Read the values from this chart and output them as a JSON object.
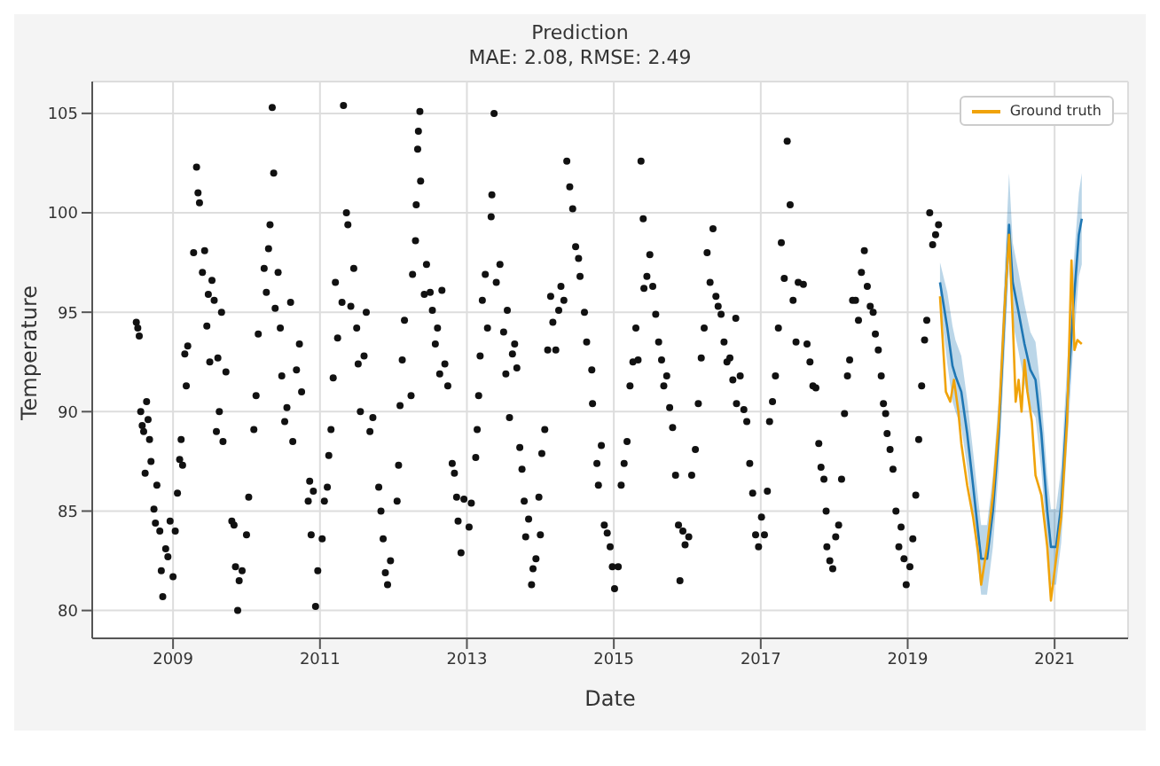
{
  "chart_data": {
    "type": "scatter",
    "title": "Prediction",
    "subtitle": "MAE: 2.08, RMSE: 2.49",
    "xlabel": "Date",
    "ylabel": "Temperature",
    "xlim": [
      2007.9,
      2022.0
    ],
    "xticks": [
      2009,
      2011,
      2013,
      2015,
      2017,
      2019,
      2021
    ],
    "ylim": [
      78.6,
      106.6
    ],
    "yticks": [
      80,
      85,
      90,
      95,
      100,
      105
    ],
    "grid": true,
    "legend": "top right",
    "series": [
      {
        "color": "#111111",
        "marker": "circle",
        "x": [
          2008.5,
          2008.52,
          2008.54,
          2008.56,
          2008.58,
          2008.6,
          2008.62,
          2008.64,
          2008.66,
          2008.68,
          2008.7,
          2008.74,
          2008.76,
          2008.78,
          2008.82,
          2008.84,
          2008.86,
          2008.9,
          2008.93,
          2008.96,
          2009.0,
          2009.03,
          2009.06,
          2009.09,
          2009.11,
          2009.13,
          2009.16,
          2009.18,
          2009.2,
          2009.28,
          2009.32,
          2009.34,
          2009.36,
          2009.4,
          2009.43,
          2009.46,
          2009.48,
          2009.5,
          2009.53,
          2009.56,
          2009.59,
          2009.61,
          2009.63,
          2009.66,
          2009.68,
          2009.72,
          2009.8,
          2009.83,
          2009.85,
          2009.88,
          2009.9,
          2009.94,
          2010.0,
          2010.03,
          2010.1,
          2010.13,
          2010.16,
          2010.24,
          2010.27,
          2010.3,
          2010.32,
          2010.35,
          2010.37,
          2010.39,
          2010.43,
          2010.46,
          2010.48,
          2010.52,
          2010.55,
          2010.6,
          2010.63,
          2010.68,
          2010.72,
          2010.75,
          2010.84,
          2010.86,
          2010.88,
          2010.91,
          2010.94,
          2010.97,
          2011.03,
          2011.06,
          2011.1,
          2011.12,
          2011.15,
          2011.18,
          2011.21,
          2011.24,
          2011.3,
          2011.32,
          2011.36,
          2011.38,
          2011.42,
          2011.46,
          2011.5,
          2011.52,
          2011.55,
          2011.6,
          2011.63,
          2011.68,
          2011.72,
          2011.8,
          2011.83,
          2011.86,
          2011.89,
          2011.92,
          2011.96,
          2012.05,
          2012.07,
          2012.09,
          2012.12,
          2012.15,
          2012.24,
          2012.26,
          2012.3,
          2012.31,
          2012.33,
          2012.34,
          2012.36,
          2012.37,
          2012.42,
          2012.45,
          2012.5,
          2012.53,
          2012.57,
          2012.6,
          2012.63,
          2012.66,
          2012.7,
          2012.74,
          2012.8,
          2012.83,
          2012.86,
          2012.88,
          2012.92,
          2012.96,
          2013.03,
          2013.06,
          2013.12,
          2013.14,
          2013.16,
          2013.18,
          2013.21,
          2013.25,
          2013.28,
          2013.33,
          2013.34,
          2013.37,
          2013.4,
          2013.45,
          2013.5,
          2013.53,
          2013.55,
          2013.58,
          2013.62,
          2013.65,
          2013.68,
          2013.72,
          2013.75,
          2013.78,
          2013.8,
          2013.84,
          2013.88,
          2013.9,
          2013.94,
          2013.98,
          2014.0,
          2014.02,
          2014.06,
          2014.1,
          2014.14,
          2014.17,
          2014.21,
          2014.25,
          2014.28,
          2014.32,
          2014.36,
          2014.4,
          2014.44,
          2014.48,
          2014.52,
          2014.54,
          2014.6,
          2014.63,
          2014.7,
          2014.71,
          2014.77,
          2014.79,
          2014.83,
          2014.87,
          2014.91,
          2014.95,
          2014.98,
          2015.01,
          2015.06,
          2015.1,
          2015.14,
          2015.18,
          2015.22,
          2015.26,
          2015.3,
          2015.33,
          2015.37,
          2015.4,
          2015.41,
          2015.45,
          2015.49,
          2015.53,
          2015.57,
          2015.61,
          2015.65,
          2015.68,
          2015.72,
          2015.76,
          2015.8,
          2015.84,
          2015.88,
          2015.9,
          2015.94,
          2015.97,
          2016.02,
          2016.06,
          2016.11,
          2016.15,
          2016.19,
          2016.23,
          2016.27,
          2016.31,
          2016.35,
          2016.39,
          2016.42,
          2016.46,
          2016.5,
          2016.54,
          2016.58,
          2016.62,
          2016.66,
          2016.67,
          2016.72,
          2016.77,
          2016.81,
          2016.85,
          2016.89,
          2016.93,
          2016.97,
          2017.01,
          2017.05,
          2017.09,
          2017.12,
          2017.16,
          2017.2,
          2017.24,
          2017.28,
          2017.32,
          2017.36,
          2017.4,
          2017.44,
          2017.48,
          2017.51,
          2017.58,
          2017.63,
          2017.67,
          2017.71,
          2017.75,
          2017.79,
          2017.82,
          2017.86,
          2017.89,
          2017.9,
          2017.94,
          2017.98,
          2018.02,
          2018.06,
          2018.1,
          2018.14,
          2018.18,
          2018.21,
          2018.25,
          2018.29,
          2018.33,
          2018.37,
          2018.41,
          2018.45,
          2018.49,
          2018.53,
          2018.56,
          2018.6,
          2018.64,
          2018.67,
          2018.7,
          2018.72,
          2018.76,
          2018.8,
          2018.84,
          2018.88,
          2018.91,
          2018.95,
          2018.98,
          2019.03,
          2019.07,
          2019.11,
          2019.15,
          2019.19,
          2019.23,
          2019.26,
          2019.3,
          2019.34,
          2019.38,
          2019.42
        ],
        "values": [
          94.5,
          94.2,
          93.8,
          90.0,
          89.3,
          89.0,
          86.9,
          90.5,
          89.6,
          88.6,
          87.5,
          85.1,
          84.4,
          86.3,
          84.0,
          82.0,
          80.7,
          83.1,
          82.7,
          84.5,
          81.7,
          84.0,
          85.9,
          87.6,
          88.6,
          87.3,
          92.9,
          91.3,
          93.3,
          98.0,
          102.3,
          101.0,
          100.5,
          97.0,
          98.1,
          94.3,
          95.9,
          92.5,
          96.6,
          95.6,
          89.0,
          92.7,
          90.0,
          95.0,
          88.5,
          92.0,
          84.5,
          84.3,
          82.2,
          80.0,
          81.5,
          82.0,
          83.8,
          85.7,
          89.1,
          90.8,
          93.9,
          97.2,
          96.0,
          98.2,
          99.4,
          105.3,
          102.0,
          95.2,
          97.0,
          94.2,
          91.8,
          89.5,
          90.2,
          95.5,
          88.5,
          92.1,
          93.4,
          91.0,
          85.5,
          86.5,
          83.8,
          86.0,
          80.2,
          82.0,
          83.6,
          85.5,
          86.2,
          87.8,
          89.1,
          91.7,
          96.5,
          93.7,
          95.5,
          105.4,
          100.0,
          99.4,
          95.3,
          97.2,
          94.2,
          92.4,
          90.0,
          92.8,
          95.0,
          89.0,
          89.7,
          86.2,
          85.0,
          83.6,
          81.9,
          81.3,
          82.5,
          85.5,
          87.3,
          90.3,
          92.6,
          94.6,
          90.8,
          96.9,
          98.6,
          100.4,
          103.2,
          104.1,
          105.1,
          101.6,
          95.9,
          97.4,
          96.0,
          95.1,
          93.4,
          94.2,
          91.9,
          96.1,
          92.4,
          91.3,
          87.4,
          86.9,
          85.7,
          84.5,
          82.9,
          85.6,
          84.2,
          85.4,
          87.7,
          89.1,
          90.8,
          92.8,
          95.6,
          96.9,
          94.2,
          99.8,
          100.9,
          105.0,
          96.5,
          97.4,
          94.0,
          91.9,
          95.1,
          89.7,
          92.9,
          93.4,
          92.2,
          88.2,
          87.1,
          85.5,
          83.7,
          84.6,
          81.3,
          82.1,
          82.6,
          85.7,
          83.8,
          87.9,
          89.1,
          93.1,
          95.8,
          94.5,
          93.1,
          95.1,
          96.3,
          95.6,
          102.6,
          101.3,
          100.2,
          98.3,
          97.7,
          96.8,
          95.0,
          93.5,
          92.1,
          90.4,
          87.4,
          86.3,
          88.3,
          84.3,
          83.9,
          83.2,
          82.2,
          81.1,
          82.2,
          86.3,
          87.4,
          88.5,
          91.3,
          92.5,
          94.2,
          92.6,
          102.6,
          99.7,
          96.2,
          96.8,
          97.9,
          96.3,
          94.9,
          93.5,
          92.6,
          91.3,
          91.8,
          90.2,
          89.2,
          86.8,
          84.3,
          81.5,
          84.0,
          83.3,
          83.7,
          86.8,
          88.1,
          90.4,
          92.7,
          94.2,
          98.0,
          96.5,
          99.2,
          95.8,
          95.3,
          94.9,
          93.5,
          92.5,
          92.7,
          91.6,
          94.7,
          90.4,
          91.8,
          90.1,
          89.5,
          87.4,
          85.9,
          83.8,
          83.2,
          84.7,
          83.8,
          86.0,
          89.5,
          90.5,
          91.8,
          94.2,
          98.5,
          96.7,
          103.6,
          100.4,
          95.6,
          93.5,
          96.5,
          96.4,
          93.4,
          92.5,
          91.3,
          91.2,
          88.4,
          87.2,
          86.6,
          85.0,
          83.2,
          82.5,
          82.1,
          83.7,
          84.3,
          86.6,
          89.9,
          91.8,
          92.6,
          95.6,
          95.6,
          94.6,
          97.0,
          98.1,
          96.3,
          95.3,
          95.0,
          93.9,
          93.1,
          91.8,
          90.4,
          89.9,
          88.9,
          88.1,
          87.1,
          85.0,
          83.2,
          84.2,
          82.6,
          81.3,
          82.2,
          83.6,
          85.8,
          88.6,
          91.3,
          93.6,
          94.6,
          100.0,
          98.4,
          98.9,
          99.4
        ]
      },
      {
        "type": "line",
        "color": "#1f77b4",
        "x": [
          2019.44,
          2019.54,
          2019.61,
          2019.65,
          2019.73,
          2019.81,
          2019.89,
          2019.96,
          2020.0,
          2020.08,
          2020.16,
          2020.24,
          2020.32,
          2020.38,
          2020.43,
          2020.51,
          2020.59,
          2020.67,
          2020.74,
          2020.82,
          2020.9,
          2020.95,
          2021.02,
          2021.09,
          2021.17,
          2021.25,
          2021.33,
          2021.37
        ],
        "values": [
          96.5,
          94.2,
          92.3,
          91.8,
          91.0,
          88.9,
          86.3,
          83.9,
          82.6,
          82.6,
          85.0,
          88.9,
          95.0,
          99.4,
          96.5,
          95.0,
          93.4,
          92.1,
          91.6,
          88.9,
          85.0,
          83.2,
          83.2,
          85.3,
          90.3,
          95.0,
          98.9,
          99.7
        ],
        "upper": [
          97.5,
          96.0,
          94.3,
          93.6,
          92.8,
          90.6,
          88.0,
          85.6,
          84.3,
          84.3,
          86.8,
          90.7,
          97.0,
          102.0,
          98.5,
          97.0,
          95.4,
          94.0,
          93.5,
          90.8,
          86.8,
          85.1,
          85.1,
          87.2,
          92.3,
          97.0,
          101.0,
          102.0
        ],
        "lower": [
          95.5,
          92.4,
          90.5,
          90.0,
          89.2,
          87.2,
          84.6,
          82.2,
          80.8,
          80.8,
          83.2,
          87.1,
          93.0,
          97.5,
          94.5,
          93.0,
          91.4,
          90.2,
          89.7,
          87.0,
          83.2,
          81.3,
          81.3,
          83.4,
          88.3,
          93.0,
          96.8,
          97.4
        ]
      },
      {
        "type": "line",
        "name": "Ground truth",
        "color": "#f0a30a",
        "x": [
          2019.44,
          2019.52,
          2019.58,
          2019.63,
          2019.69,
          2019.73,
          2019.81,
          2019.89,
          2019.96,
          2020.0,
          2020.08,
          2020.16,
          2020.24,
          2020.32,
          2020.38,
          2020.43,
          2020.47,
          2020.51,
          2020.55,
          2020.59,
          2020.63,
          2020.69,
          2020.74,
          2020.82,
          2020.9,
          2020.95,
          2021.02,
          2021.09,
          2021.17,
          2021.23,
          2021.27,
          2021.31,
          2021.37
        ],
        "values": [
          95.8,
          91.0,
          90.5,
          91.6,
          90.0,
          88.4,
          86.3,
          84.7,
          82.9,
          81.3,
          83.2,
          85.8,
          89.5,
          95.3,
          98.9,
          94.6,
          90.5,
          91.6,
          90.0,
          92.6,
          91.0,
          89.5,
          86.8,
          85.8,
          83.2,
          80.5,
          82.6,
          84.7,
          89.5,
          97.6,
          93.1,
          93.6,
          93.4
        ]
      }
    ]
  }
}
